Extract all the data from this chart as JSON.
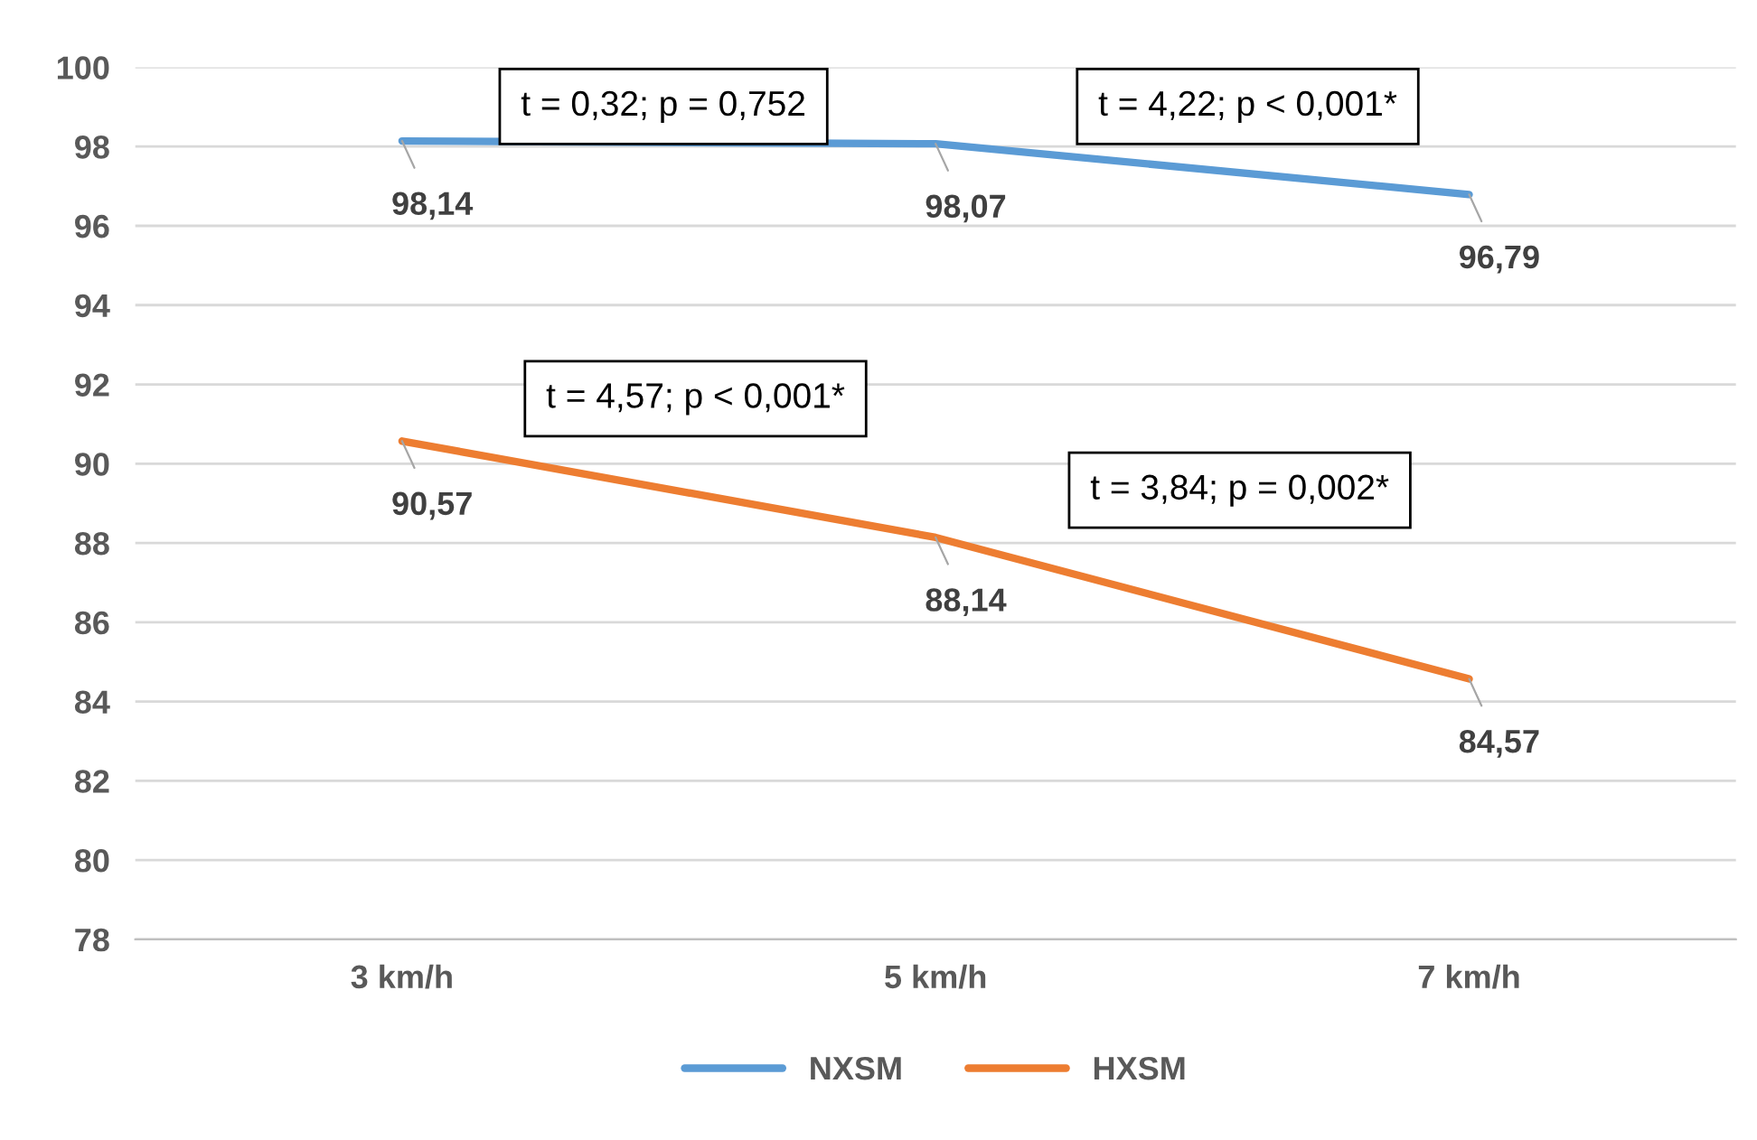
{
  "chart_data": {
    "type": "line",
    "categories": [
      "3 km/h",
      "5 km/h",
      "7 km/h"
    ],
    "series": [
      {
        "name": "NXSM",
        "color": "#5b9bd5",
        "values": [
          98.14,
          98.07,
          96.79
        ],
        "value_labels": [
          "98,14",
          "98,07",
          "96,79"
        ]
      },
      {
        "name": "HXSM",
        "color": "#ed7d31",
        "values": [
          90.57,
          88.14,
          84.57
        ],
        "value_labels": [
          "90,57",
          "88,14",
          "84,57"
        ]
      }
    ],
    "ylim": [
      78,
      100
    ],
    "yticks": [
      78,
      80,
      82,
      84,
      86,
      88,
      90,
      92,
      94,
      96,
      98,
      100
    ],
    "grid": "y",
    "legend": "bottom",
    "marker": "none",
    "line_style": "solid",
    "annotations": [
      "t = 0,32; p = 0,752",
      "t = 4,22; p < 0,001*",
      "t = 4,57; p < 0,001*",
      "t = 3,84; p = 0,002*"
    ]
  }
}
